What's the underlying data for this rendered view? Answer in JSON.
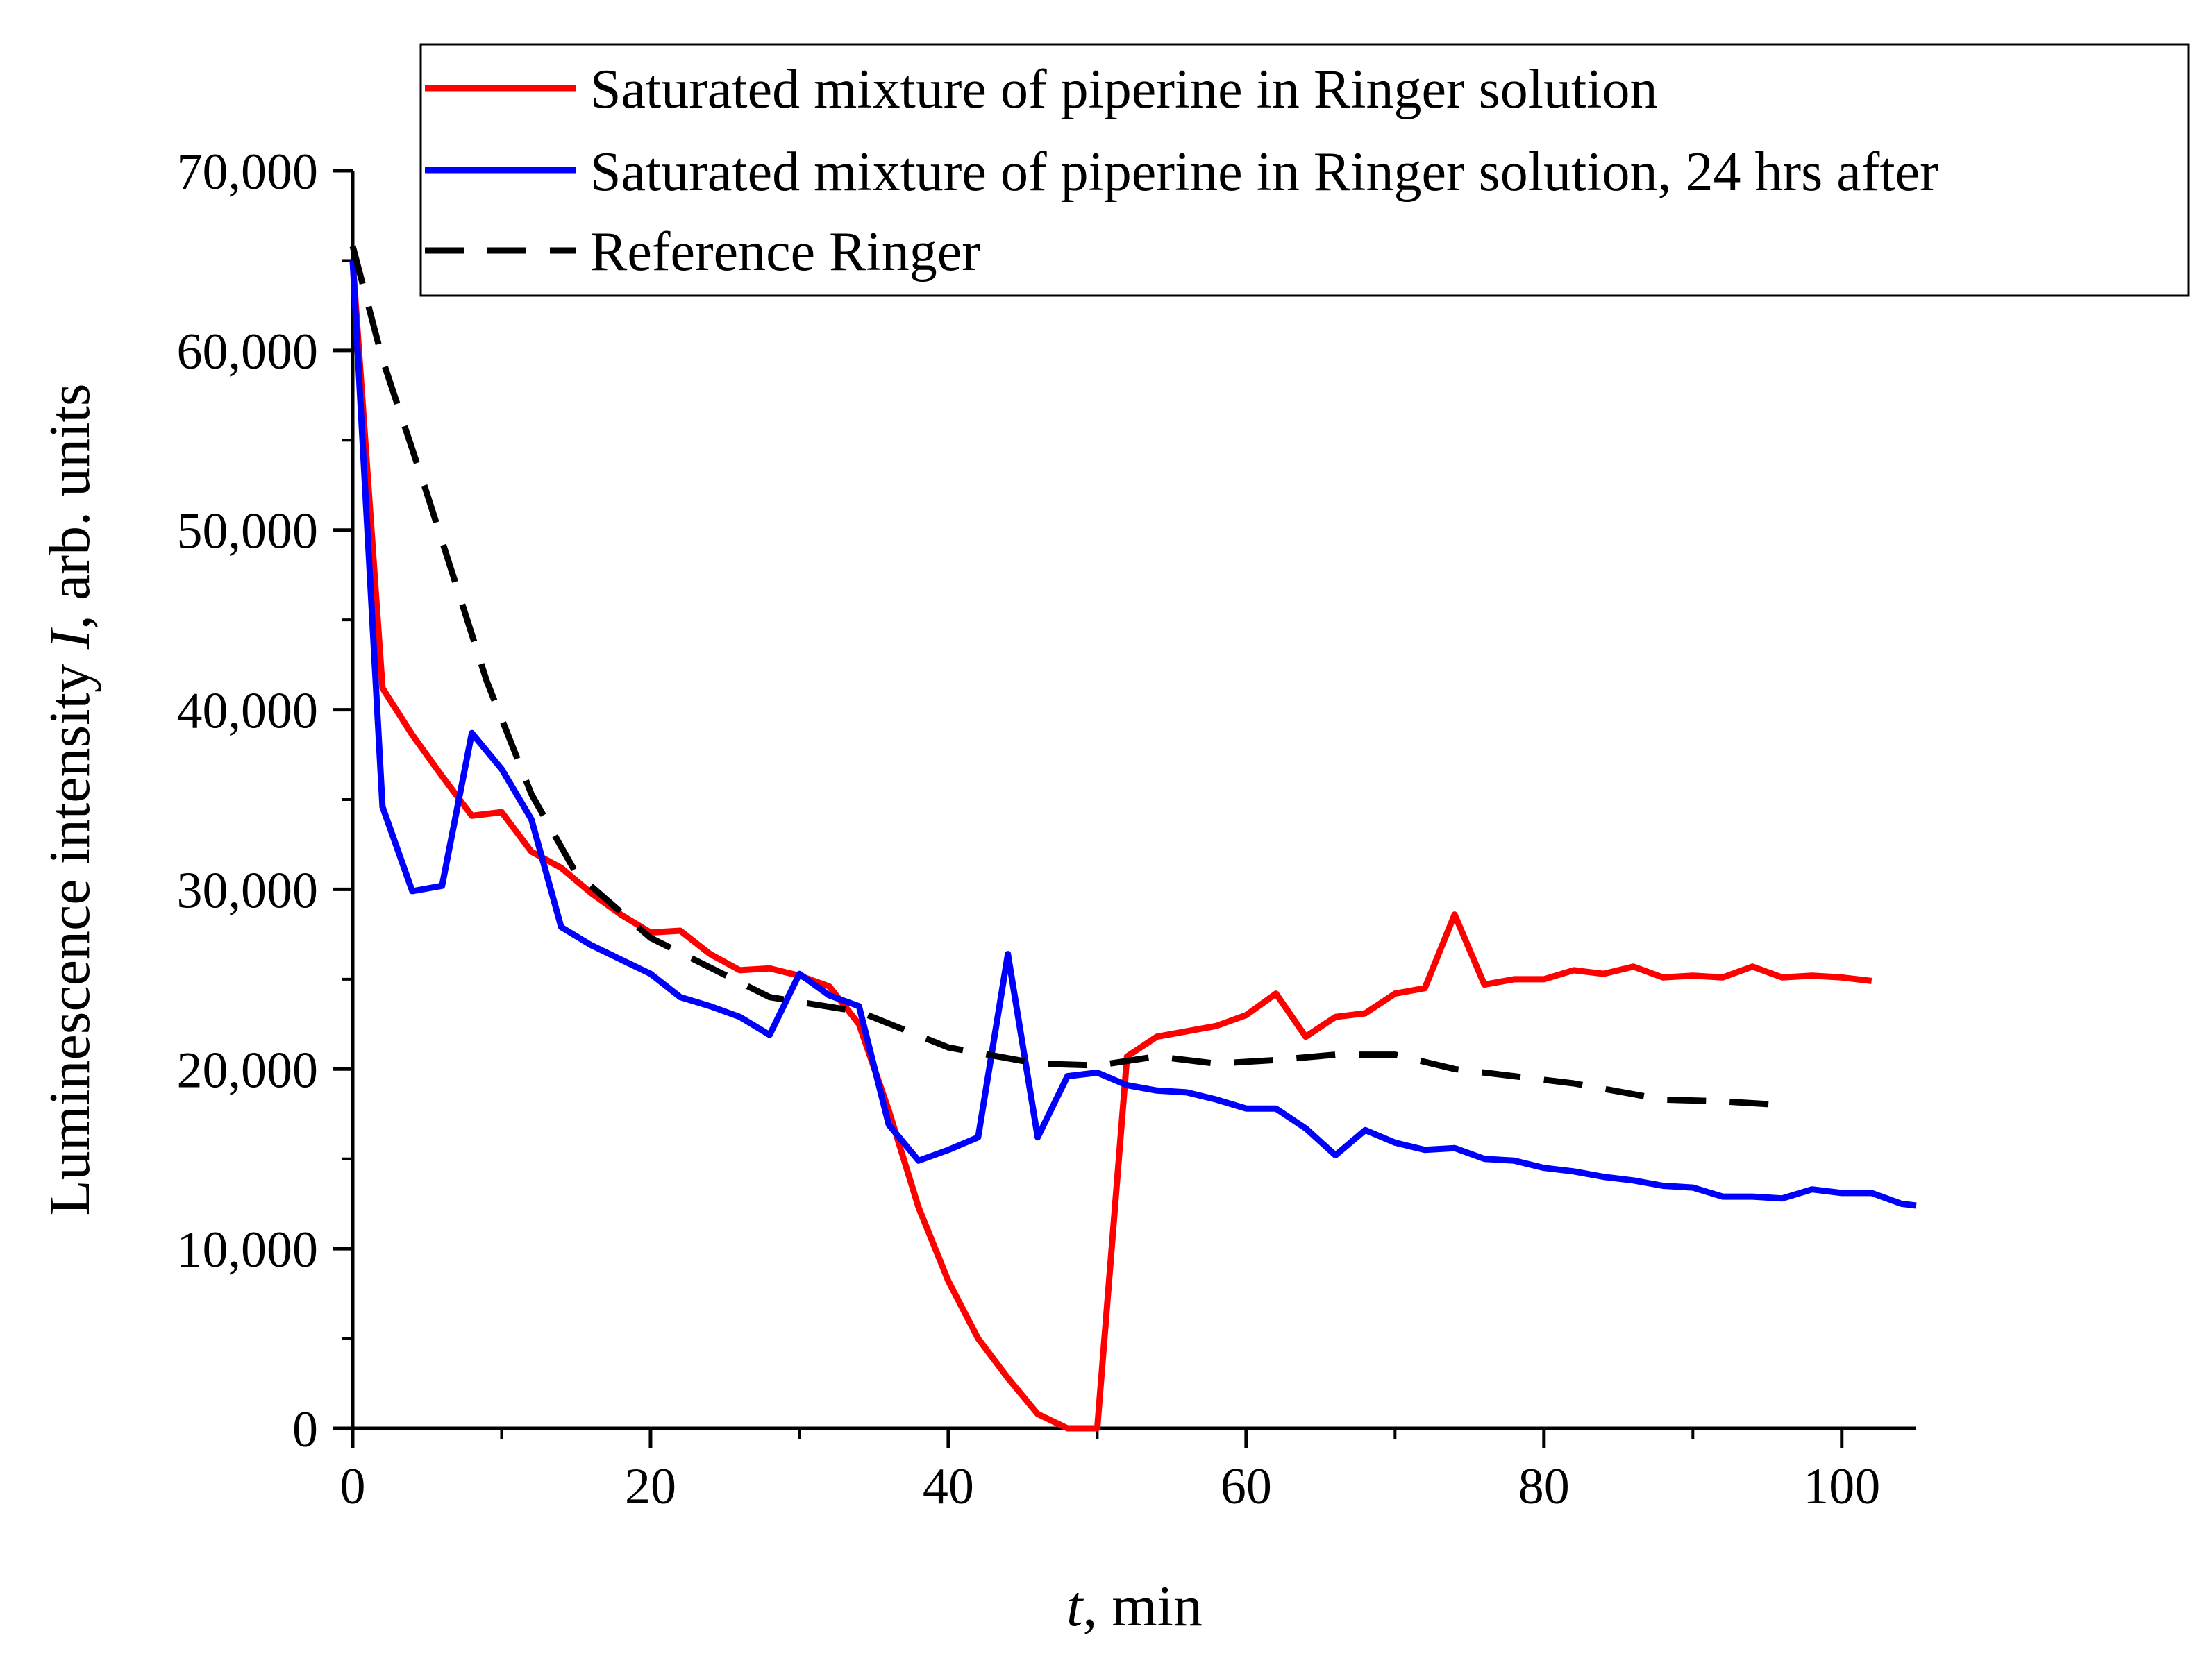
{
  "chart_data": {
    "type": "line",
    "title": "",
    "xlabel_var": "t",
    "xlabel_unit": ", min",
    "ylabel_prefix": "Luminescence intensity ",
    "ylabel_var": "I",
    "ylabel_suffix": ", arb. units",
    "xlim": [
      0,
      105
    ],
    "ylim": [
      0,
      70000
    ],
    "x_ticks": [
      0,
      20,
      40,
      60,
      80,
      100
    ],
    "x_tick_labels": [
      "0",
      "20",
      "40",
      "60",
      "80",
      "100"
    ],
    "y_ticks": [
      0,
      10000,
      20000,
      30000,
      40000,
      50000,
      60000,
      70000
    ],
    "y_tick_labels": [
      "0",
      "10,000",
      "20,000",
      "30,000",
      "40,000",
      "50,000",
      "60,000",
      "70,000"
    ],
    "grid": false,
    "legend_position": "top-right",
    "series": [
      {
        "name": "Saturated mixture of piperine in Ringer solution",
        "color": "#ff0000",
        "style": "solid",
        "points": [
          [
            0,
            65000
          ],
          [
            2,
            41200
          ],
          [
            4,
            38600
          ],
          [
            6,
            36300
          ],
          [
            8,
            34100
          ],
          [
            10,
            34300
          ],
          [
            12,
            32100
          ],
          [
            14,
            31200
          ],
          [
            16,
            29800
          ],
          [
            18,
            28600
          ],
          [
            20,
            27600
          ],
          [
            22,
            27700
          ],
          [
            24,
            26400
          ],
          [
            26,
            25500
          ],
          [
            28,
            25600
          ],
          [
            30,
            25200
          ],
          [
            32,
            24600
          ],
          [
            34,
            22500
          ],
          [
            36,
            17700
          ],
          [
            38,
            12300
          ],
          [
            40,
            8200
          ],
          [
            42,
            5000
          ],
          [
            44,
            2800
          ],
          [
            46,
            800
          ],
          [
            48,
            0
          ],
          [
            50,
            0
          ],
          [
            52,
            20700
          ],
          [
            54,
            21800
          ],
          [
            56,
            22100
          ],
          [
            58,
            22400
          ],
          [
            60,
            23000
          ],
          [
            62,
            24200
          ],
          [
            64,
            21800
          ],
          [
            66,
            22900
          ],
          [
            68,
            23100
          ],
          [
            70,
            24200
          ],
          [
            72,
            24500
          ],
          [
            74,
            28600
          ],
          [
            76,
            24700
          ],
          [
            78,
            25000
          ],
          [
            80,
            25000
          ],
          [
            82,
            25500
          ],
          [
            84,
            25300
          ],
          [
            86,
            25700
          ],
          [
            88,
            25100
          ],
          [
            90,
            25200
          ],
          [
            92,
            25100
          ],
          [
            94,
            25700
          ],
          [
            96,
            25100
          ],
          [
            98,
            25200
          ],
          [
            100,
            25100
          ],
          [
            102,
            24900
          ]
        ]
      },
      {
        "name": "Saturated mixture of piperine in Ringer solution, 24 hrs after",
        "color": "#0000ff",
        "style": "solid",
        "points": [
          [
            0,
            65000
          ],
          [
            2,
            34600
          ],
          [
            4,
            29900
          ],
          [
            6,
            30200
          ],
          [
            8,
            38700
          ],
          [
            10,
            36700
          ],
          [
            12,
            33900
          ],
          [
            14,
            27900
          ],
          [
            16,
            26900
          ],
          [
            18,
            26100
          ],
          [
            20,
            25300
          ],
          [
            22,
            24000
          ],
          [
            24,
            23500
          ],
          [
            26,
            22900
          ],
          [
            28,
            21900
          ],
          [
            30,
            25300
          ],
          [
            32,
            24100
          ],
          [
            34,
            23500
          ],
          [
            36,
            16900
          ],
          [
            38,
            14900
          ],
          [
            40,
            15500
          ],
          [
            42,
            16200
          ],
          [
            44,
            26400
          ],
          [
            46,
            16200
          ],
          [
            48,
            19600
          ],
          [
            50,
            19800
          ],
          [
            52,
            19100
          ],
          [
            54,
            18800
          ],
          [
            56,
            18700
          ],
          [
            58,
            18300
          ],
          [
            60,
            17800
          ],
          [
            62,
            17800
          ],
          [
            64,
            16700
          ],
          [
            66,
            15200
          ],
          [
            68,
            16600
          ],
          [
            70,
            15900
          ],
          [
            72,
            15500
          ],
          [
            74,
            15600
          ],
          [
            76,
            15000
          ],
          [
            78,
            14900
          ],
          [
            80,
            14500
          ],
          [
            82,
            14300
          ],
          [
            84,
            14000
          ],
          [
            86,
            13800
          ],
          [
            88,
            13500
          ],
          [
            90,
            13400
          ],
          [
            92,
            12900
          ],
          [
            94,
            12900
          ],
          [
            96,
            12800
          ],
          [
            98,
            13300
          ],
          [
            100,
            13100
          ],
          [
            102,
            13100
          ],
          [
            104,
            12500
          ],
          [
            105,
            12400
          ]
        ]
      },
      {
        "name": "Reference Ringer",
        "color": "#000000",
        "style": "dashed",
        "points": [
          [
            0,
            65800
          ],
          [
            2,
            59500
          ],
          [
            5,
            52000
          ],
          [
            9,
            41600
          ],
          [
            12,
            35300
          ],
          [
            15,
            30900
          ],
          [
            20,
            27300
          ],
          [
            28,
            24000
          ],
          [
            34,
            23200
          ],
          [
            40,
            21200
          ],
          [
            46,
            20300
          ],
          [
            50,
            20200
          ],
          [
            54,
            20700
          ],
          [
            58,
            20300
          ],
          [
            62,
            20500
          ],
          [
            66,
            20800
          ],
          [
            70,
            20800
          ],
          [
            74,
            20000
          ],
          [
            78,
            19600
          ],
          [
            82,
            19200
          ],
          [
            86,
            18600
          ],
          [
            88,
            18300
          ],
          [
            92,
            18200
          ],
          [
            96,
            18000
          ]
        ]
      }
    ]
  }
}
